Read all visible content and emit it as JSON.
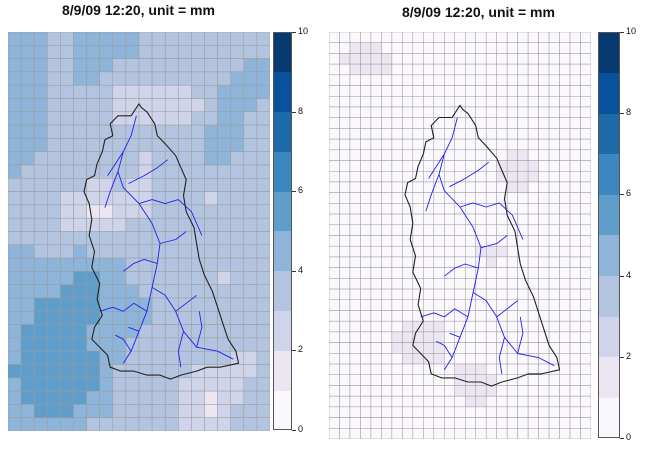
{
  "panels": [
    {
      "title": "8/9/09 12:20, unit = mm",
      "variant": "observed",
      "colorbar": {
        "ticks": [
          "10",
          "8",
          "6",
          "4",
          "2",
          "0"
        ]
      }
    },
    {
      "title": "8/9/09 12:20, unit = mm",
      "variant": "estimated",
      "colorbar": {
        "ticks": [
          "10",
          "8",
          "6",
          "4",
          "2",
          "0"
        ]
      }
    }
  ],
  "colors": {
    "scale": [
      "#fbf8fd",
      "#ece6f2",
      "#d0d4ea",
      "#b3c4e0",
      "#8eb5d9",
      "#5f9ecb",
      "#3c87bf",
      "#1d6aa8",
      "#08519c",
      "#083a72"
    ],
    "grid": "#999999",
    "river": "#2020ee",
    "boundary": "#222222"
  },
  "legend_levels": [
    0,
    1,
    2,
    3,
    4,
    5,
    6,
    7,
    8,
    9,
    10
  ]
}
